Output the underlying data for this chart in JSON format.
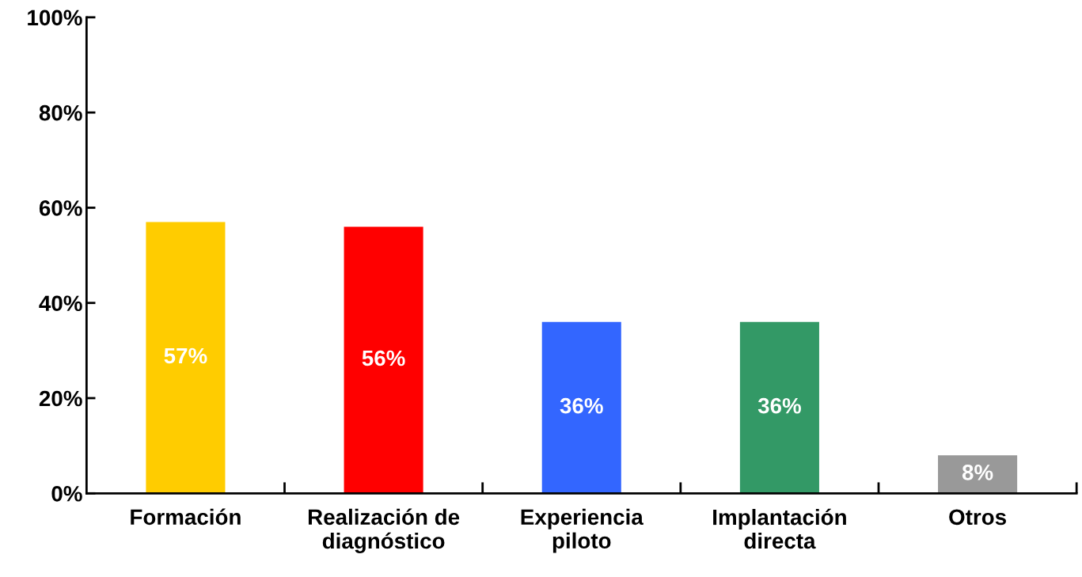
{
  "chart_data": {
    "type": "bar",
    "categories": [
      "Formación",
      "Realización de\ndiagnóstico",
      "Experiencia\npiloto",
      "Implantación\ndirecta",
      "Otros"
    ],
    "values": [
      57,
      56,
      36,
      36,
      8
    ],
    "colors": [
      "#ffcc00",
      "#ff0000",
      "#3366ff",
      "#339966",
      "#999999"
    ],
    "value_labels": [
      "57%",
      "56%",
      "36%",
      "36%",
      "8%"
    ],
    "ylim": [
      0,
      100
    ],
    "yticks": [
      {
        "value": 0,
        "label": "0%"
      },
      {
        "value": 20,
        "label": "20%"
      },
      {
        "value": 40,
        "label": "40%"
      },
      {
        "value": 60,
        "label": "60%"
      },
      {
        "value": 80,
        "label": "80%"
      },
      {
        "value": 100,
        "label": "100%"
      }
    ],
    "grid": false
  }
}
